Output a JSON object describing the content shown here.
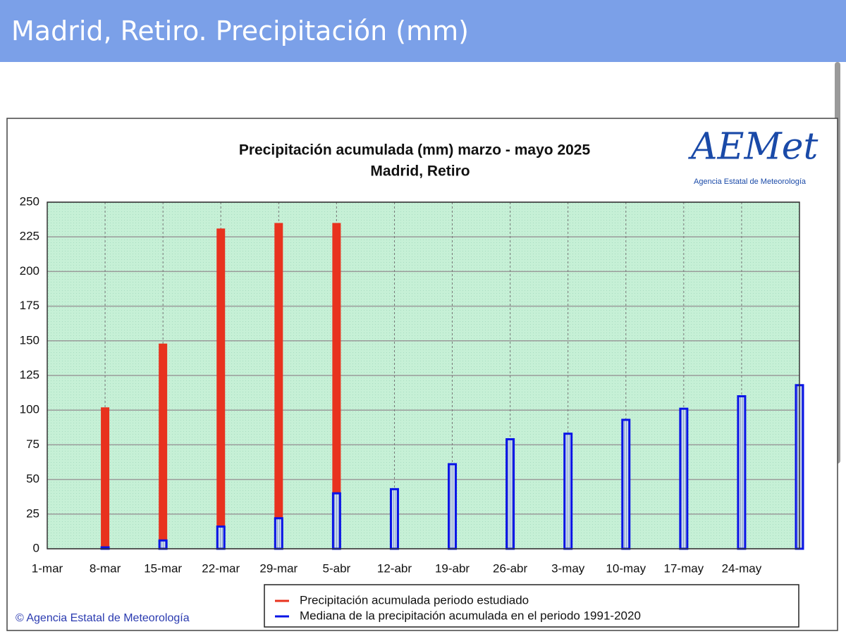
{
  "header": {
    "title": "Madrid, Retiro. Precipitación (mm)"
  },
  "chart_data": {
    "type": "bar",
    "title": "Precipitación acumulada (mm) marzo - mayo 2025",
    "subtitle": "Madrid, Retiro",
    "logo": "AEMet",
    "logo_caption": "Agencia Estatal de Meteorología",
    "copyright": "© Agencia Estatal de Meteorología",
    "categories": [
      "1-mar",
      "8-mar",
      "15-mar",
      "22-mar",
      "29-mar",
      "5-abr",
      "12-abr",
      "19-abr",
      "26-abr",
      "3-may",
      "10-may",
      "17-may",
      "24-may",
      null
    ],
    "series": [
      {
        "name": "Precipitación acumulada periodo estudiado",
        "color": "#e8321e",
        "values": [
          null,
          102,
          148,
          231,
          235,
          235,
          null,
          null,
          null,
          null,
          null,
          null,
          null,
          null
        ]
      },
      {
        "name": "Mediana de la precipitación acumulada en el periodo 1991-2020",
        "color": "#0a14e6",
        "values": [
          null,
          1,
          6,
          16,
          22,
          40,
          43,
          61,
          79,
          83,
          93,
          101,
          110,
          118
        ]
      }
    ],
    "ylim": [
      0,
      250
    ],
    "yticks": [
      0,
      25,
      50,
      75,
      100,
      125,
      150,
      175,
      200,
      225,
      250
    ],
    "grid": true,
    "legend": "bottom"
  }
}
